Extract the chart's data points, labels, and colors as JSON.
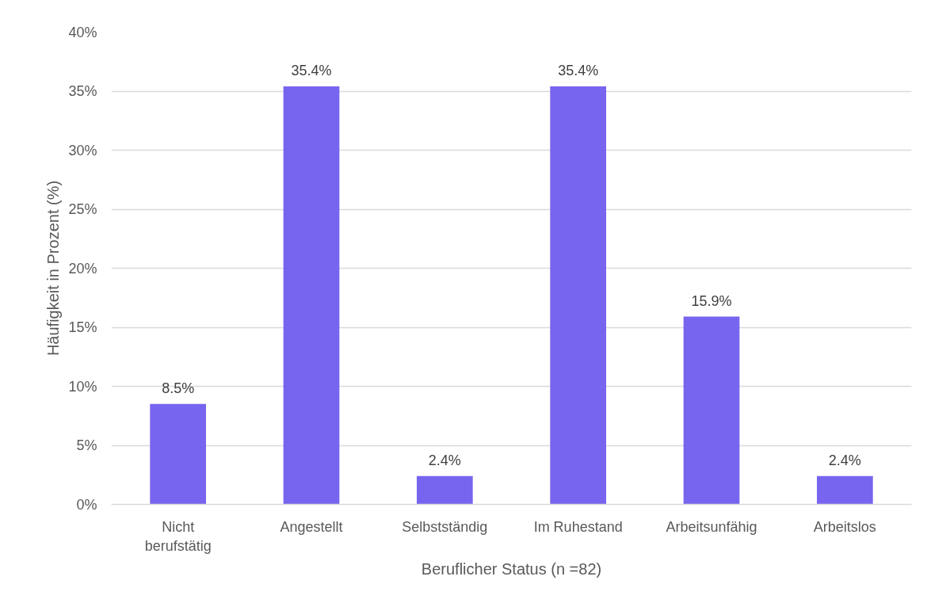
{
  "chart_data": {
    "type": "bar",
    "xlabel": "Beruflicher Status (n =82)",
    "ylabel": "Häufigkeit in Prozent (%)",
    "categories": [
      "Nicht berufstätig",
      "Angestellt",
      "Selbstständig",
      "Im Ruhestand",
      "Arbeitsunfähig",
      "Arbeitslos"
    ],
    "values": [
      8.5,
      35.4,
      2.4,
      35.4,
      15.9,
      2.4
    ],
    "value_labels": [
      "8.5%",
      "35.4%",
      "2.4%",
      "35.4%",
      "15.9%",
      "2.4%"
    ],
    "color": "#7764ef",
    "ylim": [
      0,
      40
    ],
    "yticks": [
      {
        "value": 0,
        "label": "0%"
      },
      {
        "value": 5,
        "label": "5%"
      },
      {
        "value": 10,
        "label": "10%"
      },
      {
        "value": 15,
        "label": "15%"
      },
      {
        "value": 20,
        "label": "20%"
      },
      {
        "value": 25,
        "label": "25%"
      },
      {
        "value": 30,
        "label": "30%"
      },
      {
        "value": 35,
        "label": "35%"
      },
      {
        "value": 40,
        "label": "40%"
      }
    ],
    "grid": "y"
  }
}
